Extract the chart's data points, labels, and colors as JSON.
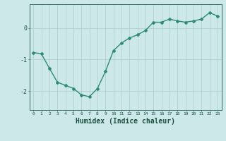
{
  "x": [
    0,
    1,
    2,
    3,
    4,
    5,
    6,
    7,
    8,
    9,
    10,
    11,
    12,
    13,
    14,
    15,
    16,
    17,
    18,
    19,
    20,
    21,
    22,
    23
  ],
  "y": [
    -0.78,
    -0.82,
    -1.28,
    -1.72,
    -1.82,
    -1.92,
    -2.12,
    -2.18,
    -1.92,
    -1.38,
    -0.72,
    -0.48,
    -0.32,
    -0.22,
    -0.08,
    0.18,
    0.18,
    0.28,
    0.22,
    0.18,
    0.22,
    0.28,
    0.48,
    0.38
  ],
  "line_color": "#2e8b7a",
  "marker": "D",
  "marker_size": 2,
  "bg_color": "#cce8e8",
  "grid_color": "#b0d0d0",
  "axis_color": "#2e6b5a",
  "text_color": "#1a5040",
  "xlabel": "Humidex (Indice chaleur)",
  "xlabel_fontsize": 7,
  "ytick_labels": [
    "-2",
    "-1",
    "0"
  ],
  "yticks": [
    -2,
    -1,
    0
  ],
  "xticks": [
    0,
    1,
    2,
    3,
    4,
    5,
    6,
    7,
    8,
    9,
    10,
    11,
    12,
    13,
    14,
    15,
    16,
    17,
    18,
    19,
    20,
    21,
    22,
    23
  ],
  "ylim": [
    -2.6,
    0.75
  ],
  "xlim": [
    -0.5,
    23.5
  ],
  "linewidth": 1.0
}
